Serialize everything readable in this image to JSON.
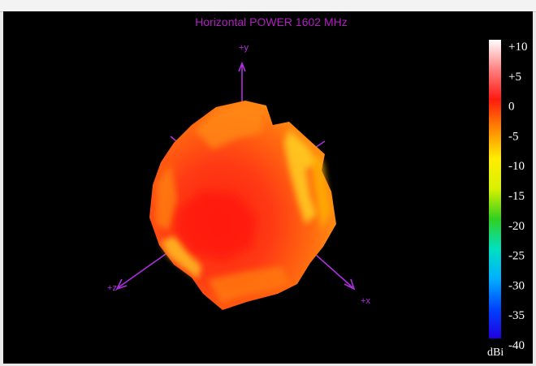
{
  "chart_data": {
    "type": "other",
    "title": "Horizontal POWER 1602  MHz",
    "axes": {
      "y": "+y",
      "z": "+z",
      "x": "+x"
    },
    "colorbar": {
      "ticks": [
        "+10",
        "+5",
        "0",
        "-5",
        "-10",
        "-15",
        "-20",
        "-25",
        "-30",
        "-35",
        "-40"
      ],
      "range": [
        10,
        -40
      ],
      "unit": "dBi",
      "colors": [
        "#ffffff",
        "#ff8080",
        "#ff1a10",
        "#ff8a00",
        "#ffee00",
        "#d8f000",
        "#30d020",
        "#00e0c0",
        "#00b0ff",
        "#0044ff",
        "#2000e0"
      ]
    },
    "colors": {
      "background": "#000000",
      "axis": "#b030e0",
      "title": "#b020c0"
    }
  }
}
